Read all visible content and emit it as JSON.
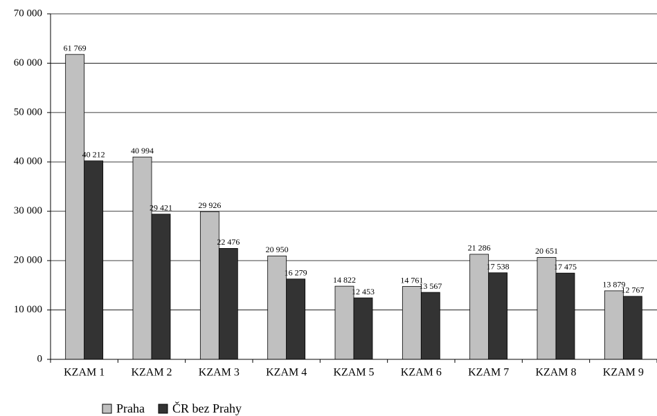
{
  "chart_data": {
    "type": "bar",
    "categories": [
      "KZAM 1",
      "KZAM 2",
      "KZAM 3",
      "KZAM 4",
      "KZAM 5",
      "KZAM 6",
      "KZAM 7",
      "KZAM 8",
      "KZAM 9"
    ],
    "series": [
      {
        "name": "Praha",
        "color": "#c0c0c0",
        "values": [
          61769,
          40994,
          29926,
          20950,
          14822,
          14761,
          21286,
          20651,
          13879
        ],
        "value_labels": [
          "61 769",
          "40 994",
          "29 926",
          "20 950",
          "14 822",
          "14 761",
          "21 286",
          "20 651",
          "13 879"
        ]
      },
      {
        "name": "ČR bez Prahy",
        "color": "#333333",
        "values": [
          40212,
          29421,
          22476,
          16279,
          12453,
          13567,
          17538,
          17475,
          12767
        ],
        "value_labels": [
          "40 212",
          "29 421",
          "22 476",
          "16 279",
          "12 453",
          "13 567",
          "17 538",
          "17 475",
          "12 767"
        ]
      }
    ],
    "ylim": [
      0,
      70000
    ],
    "yticks": [
      0,
      {
        "value": 10000,
        "label": "10 000"
      },
      {
        "value": 20000,
        "label": "20 000"
      },
      {
        "value": 30000,
        "label": "30 000"
      },
      {
        "value": 40000,
        "label": "40 000"
      },
      {
        "value": 50000,
        "label": "50 000"
      },
      {
        "value": 60000,
        "label": "60 000"
      },
      {
        "value": 70000,
        "label": "70 000"
      }
    ],
    "grid": true,
    "legend": "bottom"
  }
}
